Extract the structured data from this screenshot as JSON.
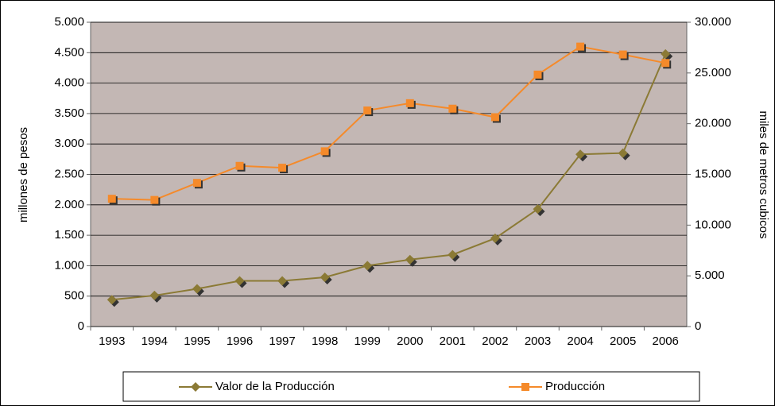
{
  "chart_data": {
    "type": "line",
    "y_label": "millones de pesos",
    "y2_label": "miles de metros cubicos",
    "categories": [
      "1993",
      "1994",
      "1995",
      "1996",
      "1997",
      "1998",
      "1999",
      "2000",
      "2001",
      "2002",
      "2003",
      "2004",
      "2005",
      "2006"
    ],
    "series": [
      {
        "name": "Valor de la Producción",
        "color": "#8b7a35",
        "marker": "diamond",
        "values": [
          440,
          510,
          620,
          750,
          750,
          810,
          1000,
          1100,
          1180,
          1450,
          1930,
          2830,
          2850,
          4480
        ]
      },
      {
        "name": "Producción",
        "color": "#f58a2a",
        "marker": "square",
        "axis": "y2",
        "values": [
          12600,
          12480,
          14160,
          15840,
          15660,
          17280,
          21300,
          22020,
          21480,
          20640,
          24840,
          27600,
          26820,
          25980
        ]
      }
    ],
    "ylim": [
      0,
      5000
    ],
    "yticks": [
      0,
      500,
      {
        "value": 1000,
        "label": "1.000"
      },
      {
        "value": 1500,
        "label": "1.500"
      },
      {
        "value": 2000,
        "label": "2.000"
      },
      {
        "value": 2500,
        "label": "2.500"
      },
      {
        "value": 3000,
        "label": "3.000"
      },
      {
        "value": 3500,
        "label": "3.500"
      },
      {
        "value": 4000,
        "label": "4.000"
      },
      {
        "value": 4500,
        "label": "4.500"
      },
      {
        "value": 5000,
        "label": "5.000"
      }
    ],
    "y2lim": [
      0,
      30000
    ],
    "y2ticks": [
      0,
      {
        "value": 5000,
        "label": "5.000"
      },
      {
        "value": 10000,
        "label": "10.000"
      },
      {
        "value": 15000,
        "label": "15.000"
      },
      {
        "value": 20000,
        "label": "20.000"
      },
      {
        "value": 25000,
        "label": "25.000"
      },
      {
        "value": 30000,
        "label": "30.000"
      }
    ],
    "grid": true,
    "legend": "bottom"
  }
}
